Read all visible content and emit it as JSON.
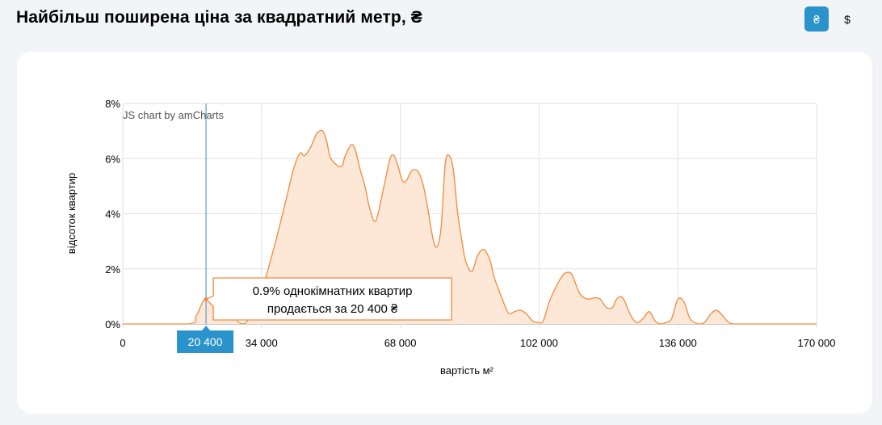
{
  "header": {
    "title": "Найбільш поширена ціна за квадратний метр, ₴",
    "currency_buttons": [
      {
        "label": "₴",
        "active": true
      },
      {
        "label": "$",
        "active": false
      }
    ]
  },
  "colors": {
    "line": "#f08a3c",
    "area": "#fde7d7",
    "accent": "#2b93cb",
    "grid": "#e2e2e2"
  },
  "chart_data": {
    "type": "area",
    "watermark": "JS chart by amCharts",
    "xlabel": "вартість м²",
    "ylabel": "відсоток квартир",
    "xlim": [
      0,
      170000
    ],
    "ylim": [
      0,
      8
    ],
    "x_ticks": [
      0,
      34000,
      68000,
      102000,
      136000,
      170000
    ],
    "x_tick_labels": [
      "0",
      "34 000",
      "68 000",
      "102 000",
      "136 000",
      "170 000"
    ],
    "y_ticks": [
      0,
      2,
      4,
      6,
      8
    ],
    "y_tick_labels": [
      "0%",
      "2%",
      "4%",
      "6%",
      "8%"
    ],
    "grid": true,
    "cursor": {
      "x": 20400,
      "x_label": "20 400",
      "tooltip_line1": "0.9% однокімнатних квартир",
      "tooltip_line2": "продається за 20 400 ₴"
    },
    "series": [
      {
        "x": [
          0,
          16000,
          18000,
          19600,
          20400,
          21500,
          22800,
          24500,
          26500,
          28500,
          30000,
          32000,
          34000,
          36000,
          38000,
          40000,
          42000,
          43500,
          44500,
          46000,
          47500,
          49000,
          50000,
          51000,
          53500,
          54500,
          56000,
          57000,
          58000,
          59500,
          60500,
          62000,
          64000,
          65500,
          66500,
          67500,
          68500,
          69500,
          70500,
          71500,
          72500,
          73500,
          74500,
          76000,
          77000,
          78000,
          79000,
          80000,
          81000,
          82000,
          83000,
          84000,
          85500,
          87000,
          88500,
          90000,
          91000,
          93000,
          94500,
          96000,
          97500,
          99000,
          100500,
          102000,
          103000,
          104500,
          106000,
          107500,
          108500,
          110000,
          112000,
          114000,
          115500,
          117000,
          118500,
          120000,
          121000,
          122500,
          124500,
          126000,
          127500,
          129000,
          130500,
          132000,
          133000,
          134500,
          136000,
          137500,
          139000,
          141000,
          142500,
          144000,
          145500,
          147000,
          148500,
          150000,
          151500,
          153000,
          155000,
          170000
        ],
        "values": [
          0,
          0,
          0.3,
          0.8,
          0.9,
          0.8,
          0.5,
          0.5,
          0.4,
          0.05,
          0.03,
          0.5,
          1.2,
          2.2,
          3.3,
          4.5,
          5.7,
          6.2,
          6.1,
          6.4,
          6.9,
          7.0,
          6.6,
          6.0,
          5.7,
          6.1,
          6.5,
          6.3,
          5.7,
          4.9,
          4.2,
          3.75,
          5.0,
          6.0,
          6.1,
          5.7,
          5.2,
          5.2,
          5.5,
          5.6,
          5.5,
          5.1,
          4.4,
          3.1,
          2.8,
          3.5,
          5.8,
          6.1,
          5.6,
          4.1,
          3.1,
          2.3,
          1.9,
          2.5,
          2.7,
          2.3,
          1.7,
          0.9,
          0.4,
          0.45,
          0.5,
          0.35,
          0.1,
          0.05,
          0.1,
          0.8,
          1.3,
          1.7,
          1.85,
          1.8,
          1.1,
          0.9,
          0.95,
          0.9,
          0.6,
          0.6,
          0.9,
          0.95,
          0.3,
          0.05,
          0.2,
          0.45,
          0.1,
          0.0,
          0.05,
          0.2,
          0.9,
          0.8,
          0.2,
          0.0,
          0.05,
          0.35,
          0.5,
          0.3,
          0.05,
          0.0,
          0.0,
          0.0,
          0.0,
          0.0
        ]
      }
    ]
  }
}
